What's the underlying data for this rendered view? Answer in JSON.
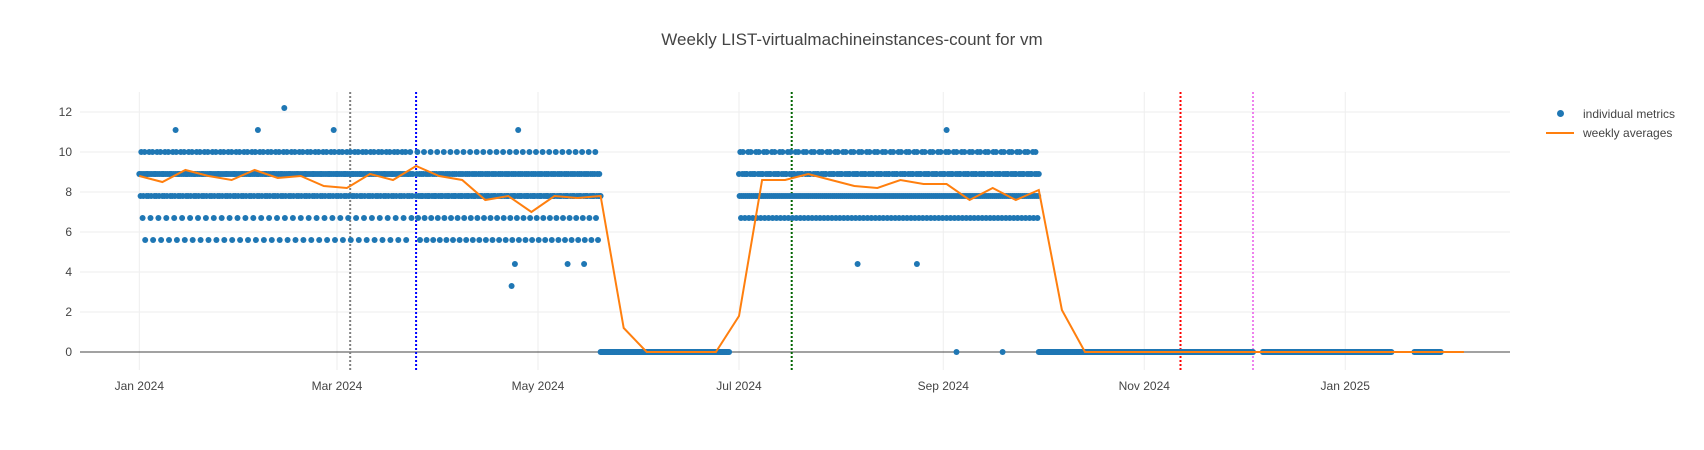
{
  "chart_data": {
    "type": "scatter",
    "title": "Weekly LIST-virtualmachineinstances-count for vm",
    "xlabel": "",
    "ylabel": "",
    "x_range": [
      "2023-12-14",
      "2025-02-20"
    ],
    "ylim": [
      -0.9,
      13
    ],
    "y_ticks": [
      0,
      2,
      4,
      6,
      8,
      10,
      12
    ],
    "x_ticks": [
      {
        "date": "2024-01-01",
        "label": "Jan 2024"
      },
      {
        "date": "2024-03-01",
        "label": "Mar 2024"
      },
      {
        "date": "2024-05-01",
        "label": "May 2024"
      },
      {
        "date": "2024-07-01",
        "label": "Jul 2024"
      },
      {
        "date": "2024-09-01",
        "label": "Sep 2024"
      },
      {
        "date": "2024-11-01",
        "label": "Nov 2024"
      },
      {
        "date": "2025-01-01",
        "label": "Jan 2025"
      }
    ],
    "grid": true,
    "legend_position": "top-right",
    "colors": {
      "individual_metrics": "#1f77b4",
      "weekly_averages": "#ff7f0e",
      "zero_line": "#444444",
      "grid": "#eeeeee"
    },
    "vertical_lines": [
      {
        "date": "2024-03-05",
        "color": "#808080"
      },
      {
        "date": "2024-03-25",
        "color": "#0000ff"
      },
      {
        "date": "2024-07-17",
        "color": "#006400"
      },
      {
        "date": "2024-11-12",
        "color": "#ff0000"
      },
      {
        "date": "2024-12-04",
        "color": "#ee82ee"
      }
    ],
    "series": [
      {
        "name": "individual metrics",
        "mode": "markers",
        "level_groups": [
          {
            "start": "2024-01-01",
            "end": "2024-03-24",
            "levels": [
              8.9,
              8.9,
              7.8,
              10,
              8.9,
              6.7,
              7.8,
              8.9,
              10,
              5.6,
              8.9,
              7.8
            ]
          },
          {
            "start": "2024-03-25",
            "end": "2024-05-20",
            "levels": [
              7.8,
              8.9,
              10,
              6.7,
              7.8,
              8.9,
              5.6,
              7.8,
              8.9,
              7.8
            ]
          },
          {
            "start": "2024-05-20",
            "end": "2024-06-28",
            "levels": [
              0
            ]
          },
          {
            "start": "2024-07-01",
            "end": "2024-09-30",
            "levels": [
              8.9,
              7.8,
              10,
              6.7,
              7.8,
              8.9,
              10,
              7.8,
              8.9,
              6.7,
              7.8,
              8.9
            ]
          },
          {
            "start": "2024-09-30",
            "end": "2024-12-04",
            "levels": [
              0
            ]
          },
          {
            "start": "2024-12-07",
            "end": "2025-01-15",
            "levels": [
              0
            ]
          },
          {
            "start": "2025-01-22",
            "end": "2025-01-30",
            "levels": [
              0
            ]
          }
        ],
        "outliers": [
          {
            "x": "2024-01-12",
            "y": 11.1
          },
          {
            "x": "2024-02-06",
            "y": 11.1
          },
          {
            "x": "2024-02-14",
            "y": 12.2
          },
          {
            "x": "2024-02-29",
            "y": 11.1
          },
          {
            "x": "2024-04-25",
            "y": 11.1
          },
          {
            "x": "2024-04-24",
            "y": 4.4
          },
          {
            "x": "2024-04-23",
            "y": 3.3
          },
          {
            "x": "2024-05-10",
            "y": 4.4
          },
          {
            "x": "2024-05-15",
            "y": 4.4
          },
          {
            "x": "2024-08-06",
            "y": 4.4
          },
          {
            "x": "2024-08-24",
            "y": 4.4
          },
          {
            "x": "2024-09-02",
            "y": 11.1
          },
          {
            "x": "2024-09-05",
            "y": 0
          },
          {
            "x": "2024-09-19",
            "y": 0
          }
        ]
      },
      {
        "name": "weekly averages",
        "mode": "lines",
        "points": [
          [
            "2024-01-01",
            8.8
          ],
          [
            "2024-01-08",
            8.5
          ],
          [
            "2024-01-15",
            9.1
          ],
          [
            "2024-01-22",
            8.8
          ],
          [
            "2024-01-29",
            8.6
          ],
          [
            "2024-02-05",
            9.1
          ],
          [
            "2024-02-12",
            8.7
          ],
          [
            "2024-02-19",
            8.8
          ],
          [
            "2024-02-26",
            8.3
          ],
          [
            "2024-03-04",
            8.2
          ],
          [
            "2024-03-11",
            8.9
          ],
          [
            "2024-03-18",
            8.6
          ],
          [
            "2024-03-25",
            9.3
          ],
          [
            "2024-04-01",
            8.8
          ],
          [
            "2024-04-08",
            8.6
          ],
          [
            "2024-04-15",
            7.6
          ],
          [
            "2024-04-22",
            7.8
          ],
          [
            "2024-04-29",
            7.0
          ],
          [
            "2024-05-06",
            7.8
          ],
          [
            "2024-05-13",
            7.7
          ],
          [
            "2024-05-20",
            7.8
          ],
          [
            "2024-05-27",
            1.2
          ],
          [
            "2024-06-03",
            0
          ],
          [
            "2024-06-10",
            0
          ],
          [
            "2024-06-17",
            0
          ],
          [
            "2024-06-24",
            0
          ],
          [
            "2024-07-01",
            1.8
          ],
          [
            "2024-07-08",
            8.6
          ],
          [
            "2024-07-15",
            8.6
          ],
          [
            "2024-07-22",
            8.9
          ],
          [
            "2024-07-29",
            8.6
          ],
          [
            "2024-08-05",
            8.3
          ],
          [
            "2024-08-12",
            8.2
          ],
          [
            "2024-08-19",
            8.6
          ],
          [
            "2024-08-26",
            8.4
          ],
          [
            "2024-09-02",
            8.4
          ],
          [
            "2024-09-09",
            7.6
          ],
          [
            "2024-09-16",
            8.2
          ],
          [
            "2024-09-23",
            7.6
          ],
          [
            "2024-09-30",
            8.1
          ],
          [
            "2024-10-07",
            2.1
          ],
          [
            "2024-10-14",
            0
          ],
          [
            "2024-10-21",
            0
          ],
          [
            "2025-02-06",
            0
          ]
        ]
      }
    ]
  },
  "legend": {
    "items": [
      {
        "label": "individual metrics"
      },
      {
        "label": "weekly averages"
      }
    ]
  }
}
